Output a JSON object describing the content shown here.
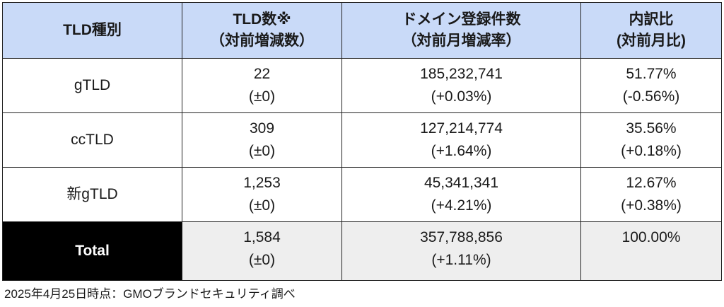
{
  "table": {
    "headers": [
      {
        "line1": "TLD種別",
        "line2": ""
      },
      {
        "line1": "TLD数※",
        "line2": "（対前増減数）"
      },
      {
        "line1": "ドメイン登録件数",
        "line2": "（対前月増減率）"
      },
      {
        "line1": "内訳比",
        "line2": "(対前月比)"
      }
    ],
    "rows": [
      {
        "label": "gTLD",
        "tld_count": "22",
        "tld_count_change": "(±0)",
        "registrations": "185,232,741",
        "registrations_change": "(+0.03%)",
        "share": "51.77%",
        "share_change": "(-0.56%)"
      },
      {
        "label": "ccTLD",
        "tld_count": "309",
        "tld_count_change": "(±0)",
        "registrations": "127,214,774",
        "registrations_change": "(+1.64%)",
        "share": "35.56%",
        "share_change": "(+0.18%)"
      },
      {
        "label": "新gTLD",
        "tld_count": "1,253",
        "tld_count_change": "(±0)",
        "registrations": "45,341,341",
        "registrations_change": "(+4.21%)",
        "share": "12.67%",
        "share_change": "(+0.38%)"
      },
      {
        "label": "Total",
        "tld_count": "1,584",
        "tld_count_change": "(±0)",
        "registrations": "357,788,856",
        "registrations_change": "(+1.11%)",
        "share": "100.00%",
        "share_change": ""
      }
    ]
  },
  "footnote": "2025年4月25日時点：GMOブランドセキュリティ調べ",
  "colors": {
    "header_bg": "#c9daf8",
    "total_label_bg": "#000000",
    "total_row_bg": "#eeeeee",
    "border": "#222222"
  }
}
